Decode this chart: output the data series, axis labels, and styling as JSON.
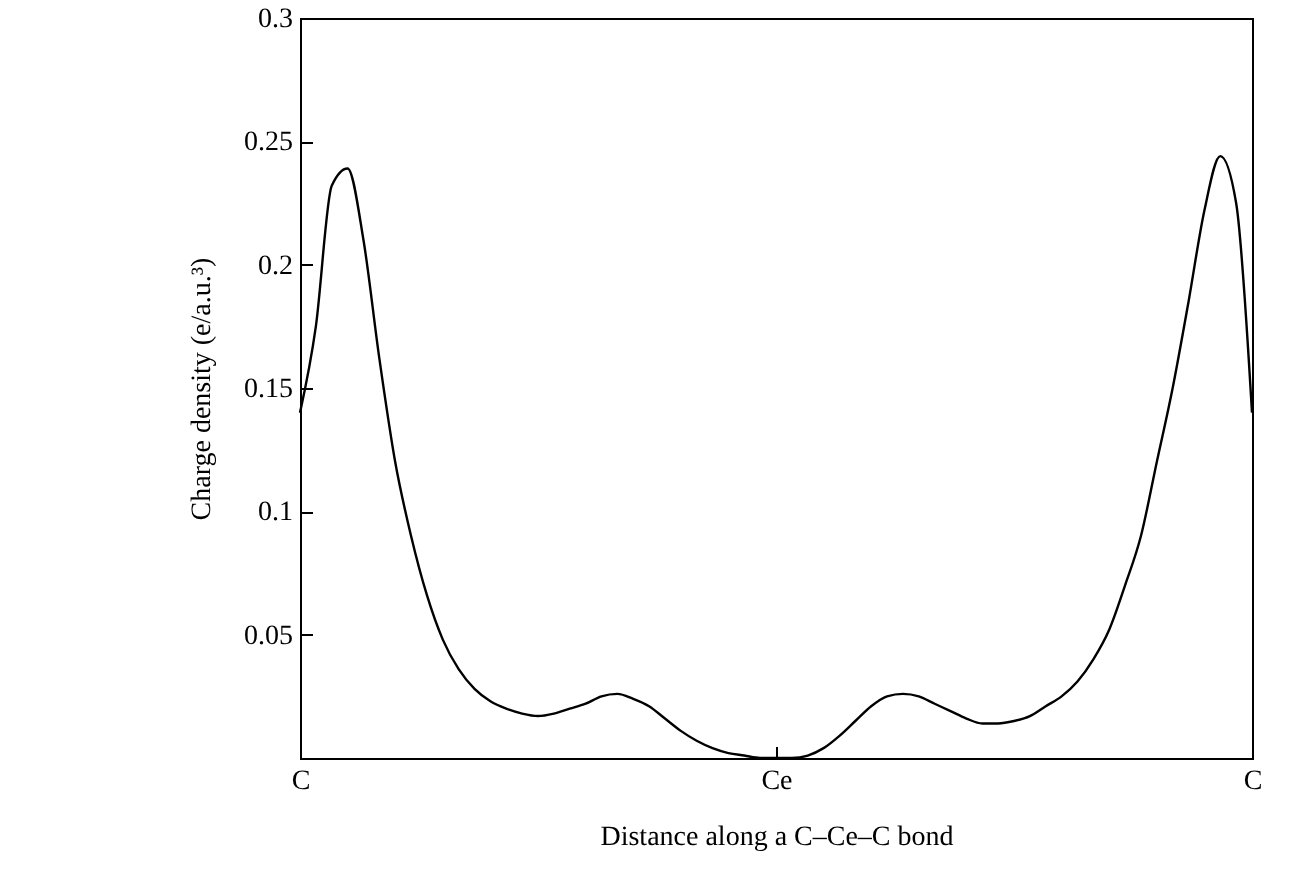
{
  "chart_data": {
    "type": "line",
    "xlabel": "Distance along a C–Ce–C bond",
    "ylabel": "Charge density (e/a.u.³)",
    "categories": [
      "C",
      null,
      null,
      null,
      null,
      null,
      null,
      null,
      null,
      null,
      null,
      null,
      null,
      null,
      null,
      null,
      null,
      null,
      null,
      null,
      null,
      null,
      null,
      null,
      null,
      null,
      null,
      null,
      null,
      null,
      "Ce",
      null,
      null,
      null,
      null,
      null,
      null,
      null,
      null,
      null,
      null,
      null,
      null,
      null,
      null,
      null,
      null,
      null,
      null,
      null,
      null,
      null,
      null,
      null,
      null,
      null,
      null,
      null,
      null,
      null,
      "C"
    ],
    "series": [
      {
        "color": "#000000",
        "values": [
          0.14,
          0.175,
          0.232,
          0.239,
          0.21,
          0.162,
          0.12,
          0.09,
          0.066,
          0.048,
          0.036,
          0.028,
          0.023,
          0.02,
          0.018,
          0.017,
          0.018,
          0.02,
          0.022,
          0.025,
          0.026,
          0.024,
          0.021,
          0.016,
          0.011,
          0.007,
          0.004,
          0.002,
          0.001,
          0,
          0,
          0,
          0.001,
          0.004,
          0.009,
          0.015,
          0.021,
          0.025,
          0.026,
          0.025,
          0.022,
          0.019,
          0.016,
          0.014,
          0.014,
          0.015,
          0.017,
          0.021,
          0.025,
          0.031,
          0.04,
          0.052,
          0.07,
          0.09,
          0.12,
          0.15,
          0.185,
          0.222,
          0.244,
          0.225,
          0.14
        ]
      }
    ],
    "ylim": [
      0,
      0.3
    ],
    "yticks": [
      0.05,
      0.1,
      0.15,
      0.2,
      0.25,
      0.3
    ],
    "grid": false,
    "marker": "none",
    "line_style": "solid"
  }
}
